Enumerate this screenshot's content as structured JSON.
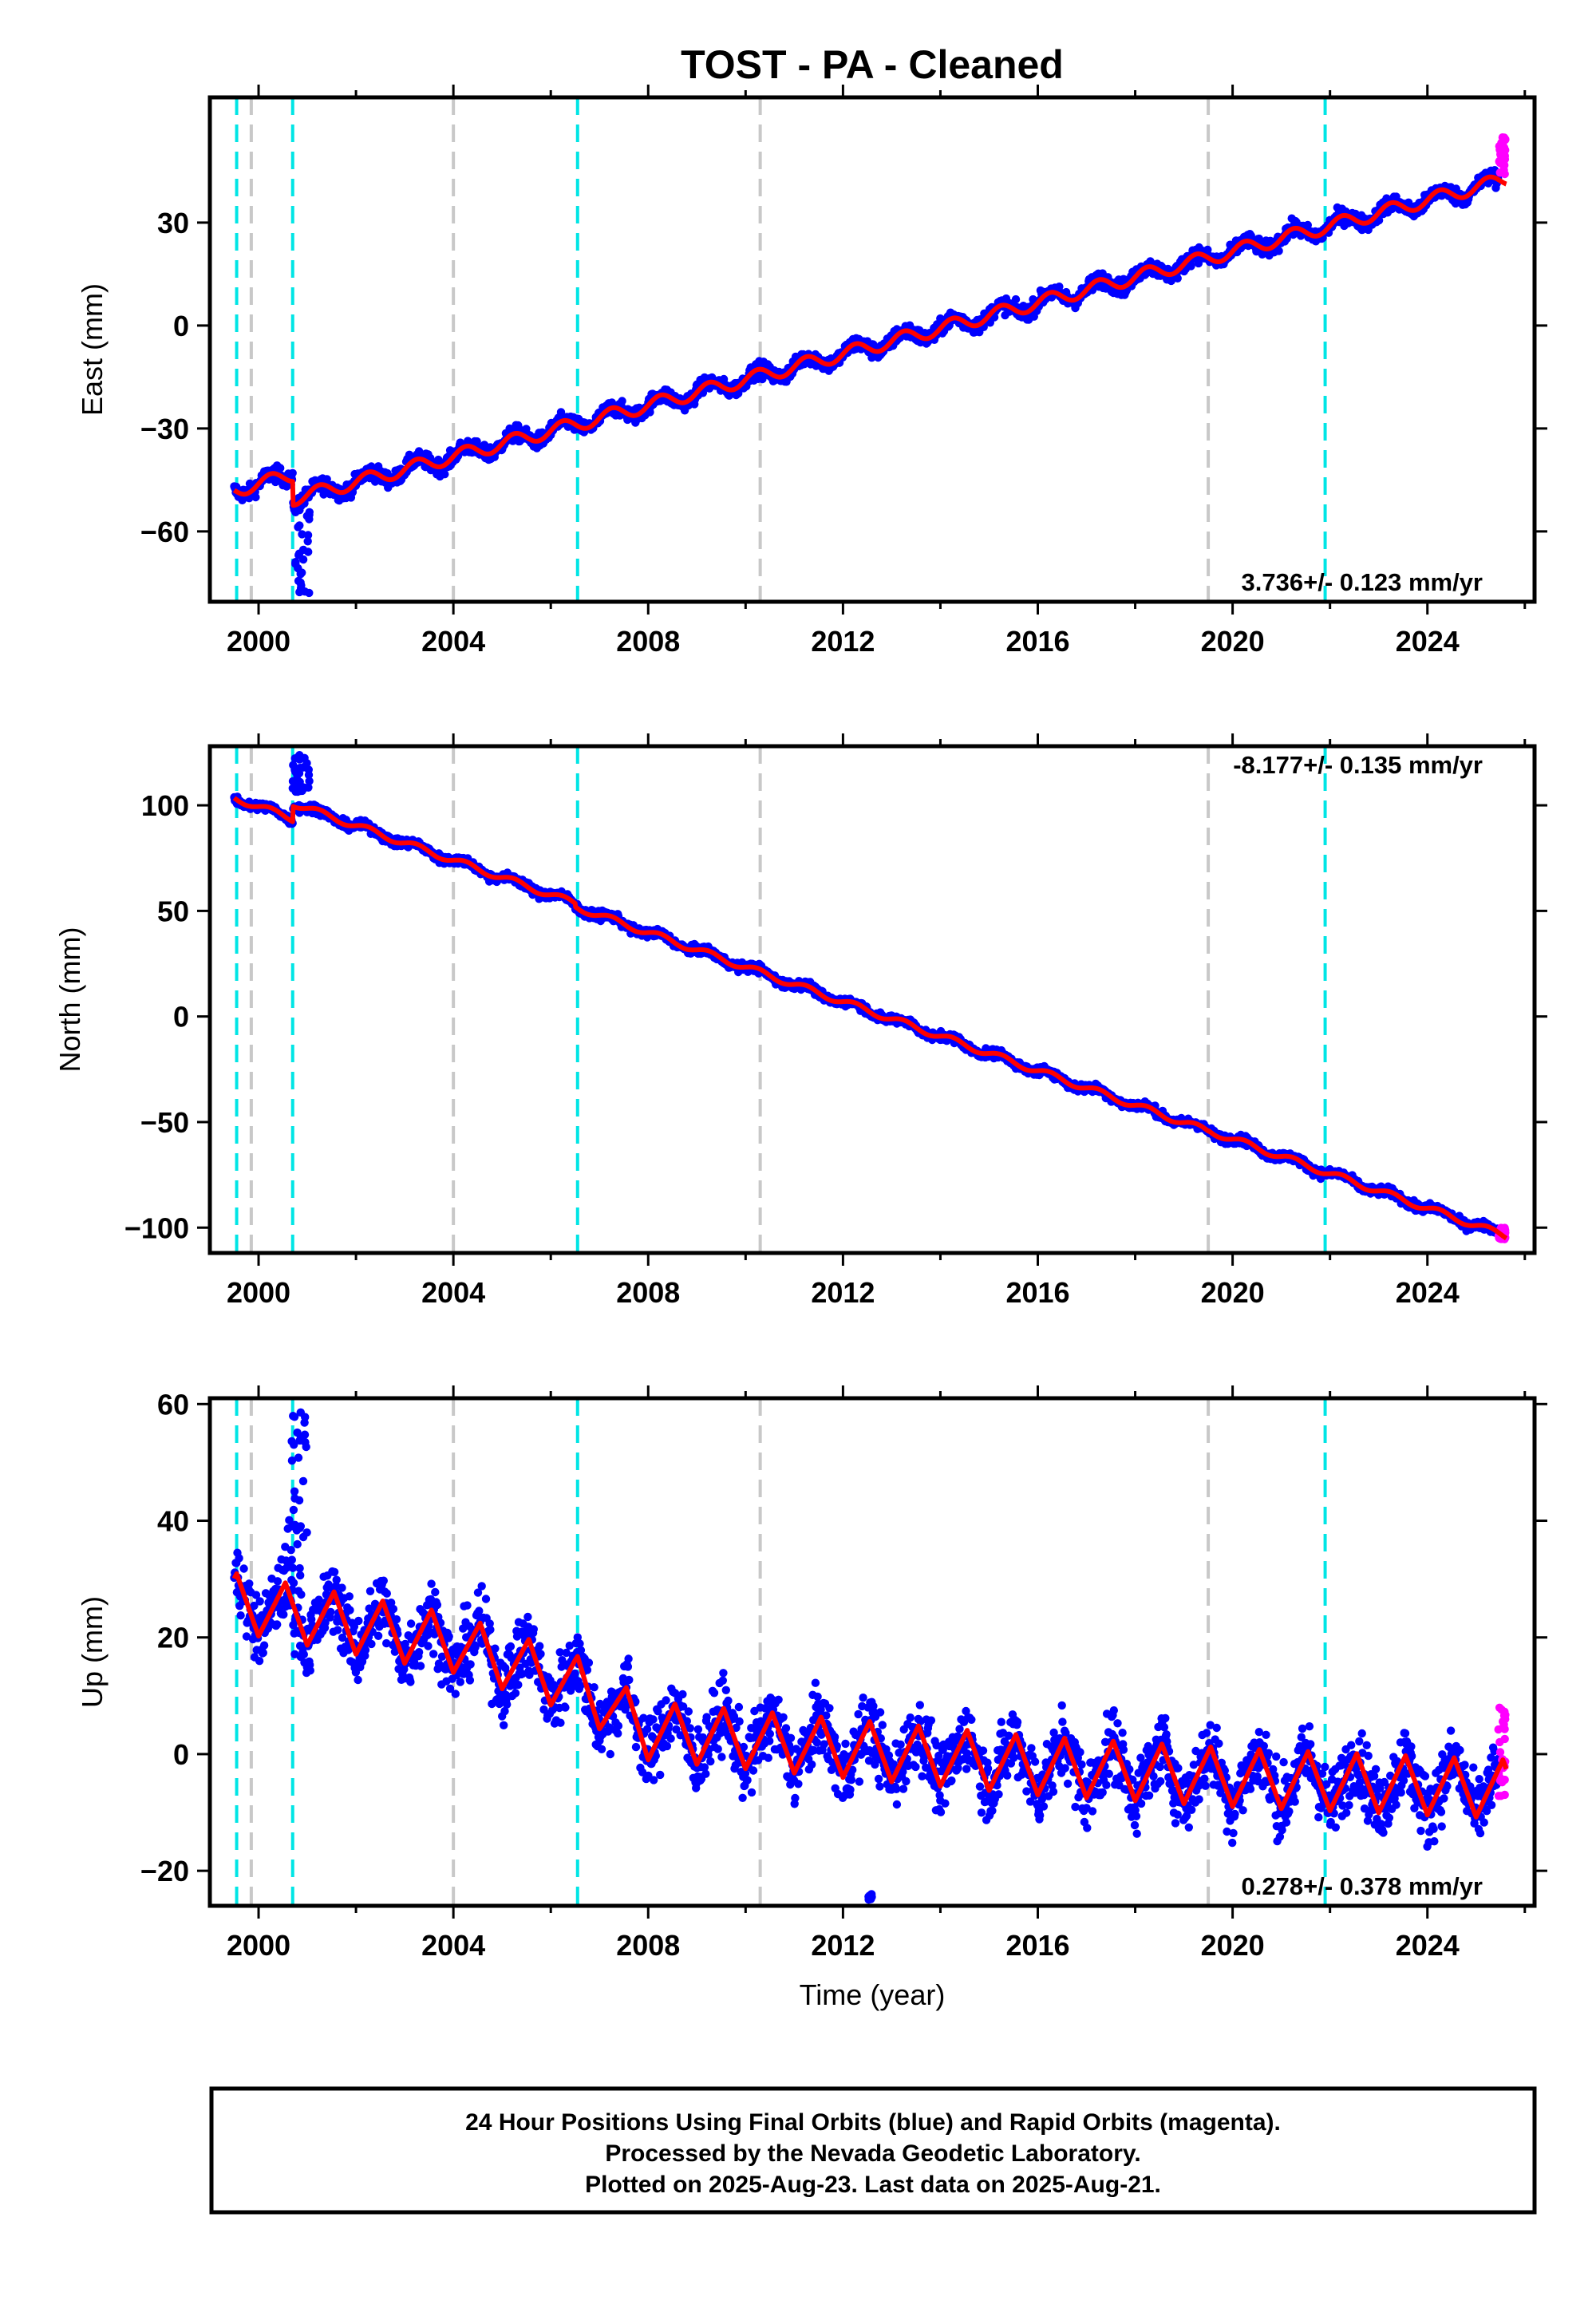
{
  "title": "TOST  - PA - Cleaned",
  "colors": {
    "final_orbits": "#0000ff",
    "rapid_orbits": "#ff00ff",
    "model": "#ff0000",
    "eq_event": "#00e5e5",
    "equipment_change": "#c8c8c8"
  },
  "chart_data": [
    {
      "type": "scatter",
      "name": "east",
      "ylabel": "East (mm)",
      "xlabel": "",
      "xlim": [
        1999.0,
        2026.2
      ],
      "ylim": [
        -80.5,
        66.5
      ],
      "xticks": [
        2000,
        2004,
        2008,
        2012,
        2016,
        2020,
        2024
      ],
      "xticklabels": [
        "2000",
        "2004",
        "2008",
        "2012",
        "2016",
        "2020",
        "2024"
      ],
      "yticks": [
        -60,
        -30,
        0,
        30
      ],
      "yticklabels": [
        "−60",
        "−30",
        "0",
        "30"
      ],
      "rate_text": "3.736+/- 0.123 mm/yr",
      "rate_position": "bottom-right",
      "model_segments": [
        {
          "start": 1999.5,
          "end": 2000.7,
          "y0": -48.0,
          "rate": 3.736,
          "annual": 2.0
        },
        {
          "start": 2000.7,
          "end": 2025.6,
          "y0": -50.5,
          "rate": 3.736,
          "annual": 2.0
        }
      ],
      "scatter_noise": 1.6,
      "outliers": [
        {
          "x_start": 2000.75,
          "x_end": 2001.05,
          "y_min": -78.0,
          "y_max": -52.0
        }
      ],
      "rapid_points": {
        "x_start": 2025.45,
        "x_end": 2025.6,
        "y_min": 44.0,
        "y_max": 56.0
      }
    },
    {
      "type": "scatter",
      "name": "north",
      "ylabel": "North (mm)",
      "xlabel": "",
      "xlim": [
        1999.0,
        2026.2
      ],
      "ylim": [
        -112,
        128
      ],
      "xticks": [
        2000,
        2004,
        2008,
        2012,
        2016,
        2020,
        2024
      ],
      "xticklabels": [
        "2000",
        "2004",
        "2008",
        "2012",
        "2016",
        "2020",
        "2024"
      ],
      "yticks": [
        -100,
        -50,
        0,
        50,
        100
      ],
      "yticklabels": [
        "−100",
        "−50",
        "0",
        "50",
        "100"
      ],
      "rate_text": "-8.177+/- 0.135 mm/yr",
      "rate_position": "top-right",
      "model_segments": [
        {
          "start": 1999.5,
          "end": 2000.7,
          "y0": 103.5,
          "rate": -8.177,
          "annual": 1.5
        },
        {
          "start": 2000.7,
          "end": 2006.5,
          "y0": 101.0,
          "rate": -8.177,
          "annual": 1.5
        },
        {
          "start": 2006.5,
          "end": 2019.5,
          "y0": 52.0,
          "rate": -8.177,
          "annual": 1.5
        },
        {
          "start": 2019.5,
          "end": 2025.6,
          "y0": -54.0,
          "rate": -8.177,
          "annual": 1.5
        }
      ],
      "scatter_noise": 1.5,
      "outliers": [
        {
          "x_start": 2000.7,
          "x_end": 2001.05,
          "y_min": 106.0,
          "y_max": 124.0
        }
      ],
      "rapid_points": {
        "x_start": 2025.45,
        "x_end": 2025.6,
        "y_min": -106.0,
        "y_max": -100.0
      }
    },
    {
      "type": "scatter",
      "name": "up",
      "ylabel": "Up (mm)",
      "xlabel": "Time (year)",
      "xlim": [
        1999.0,
        2026.2
      ],
      "ylim": [
        -26,
        61
      ],
      "xticks": [
        2000,
        2004,
        2008,
        2012,
        2016,
        2020,
        2024
      ],
      "xticklabels": [
        "2000",
        "2004",
        "2008",
        "2012",
        "2016",
        "2020",
        "2024"
      ],
      "yticks": [
        -20,
        0,
        20,
        40,
        60
      ],
      "yticklabels": [
        "−20",
        "0",
        "20",
        "40",
        "60"
      ],
      "rate_text": "0.278+/- 0.378 mm/yr",
      "rate_position": "bottom-right",
      "model_trend": [
        [
          1999.5,
          26
        ],
        [
          2004.0,
          19
        ],
        [
          2006.5,
          12
        ],
        [
          2008.0,
          4
        ],
        [
          2012.0,
          1
        ],
        [
          2016.0,
          -2
        ],
        [
          2020.0,
          -4
        ],
        [
          2025.6,
          -6
        ]
      ],
      "model_annual": 5.0,
      "scatter_noise": 4.2,
      "outliers": [
        {
          "x_start": 2000.6,
          "x_end": 2001.0,
          "y_min": 30.0,
          "y_max": 59.0
        },
        {
          "x_start": 2012.5,
          "x_end": 2012.6,
          "y_min": -25.0,
          "y_max": -24.0
        }
      ],
      "rapid_points": {
        "x_start": 2025.45,
        "x_end": 2025.6,
        "y_min": -8.0,
        "y_max": 10.0
      }
    }
  ],
  "event_lines": {
    "eq": [
      1999.55,
      2000.7,
      2006.55,
      2021.9
    ],
    "equipment": [
      1999.85,
      2004.0,
      2010.3,
      2019.5
    ]
  },
  "footer": {
    "line1": "24 Hour Positions Using Final Orbits (blue) and Rapid Orbits (magenta).",
    "line2": "Processed by the Nevada Geodetic Laboratory.",
    "line3": "Plotted on 2025-Aug-23. Last data on 2025-Aug-21."
  }
}
